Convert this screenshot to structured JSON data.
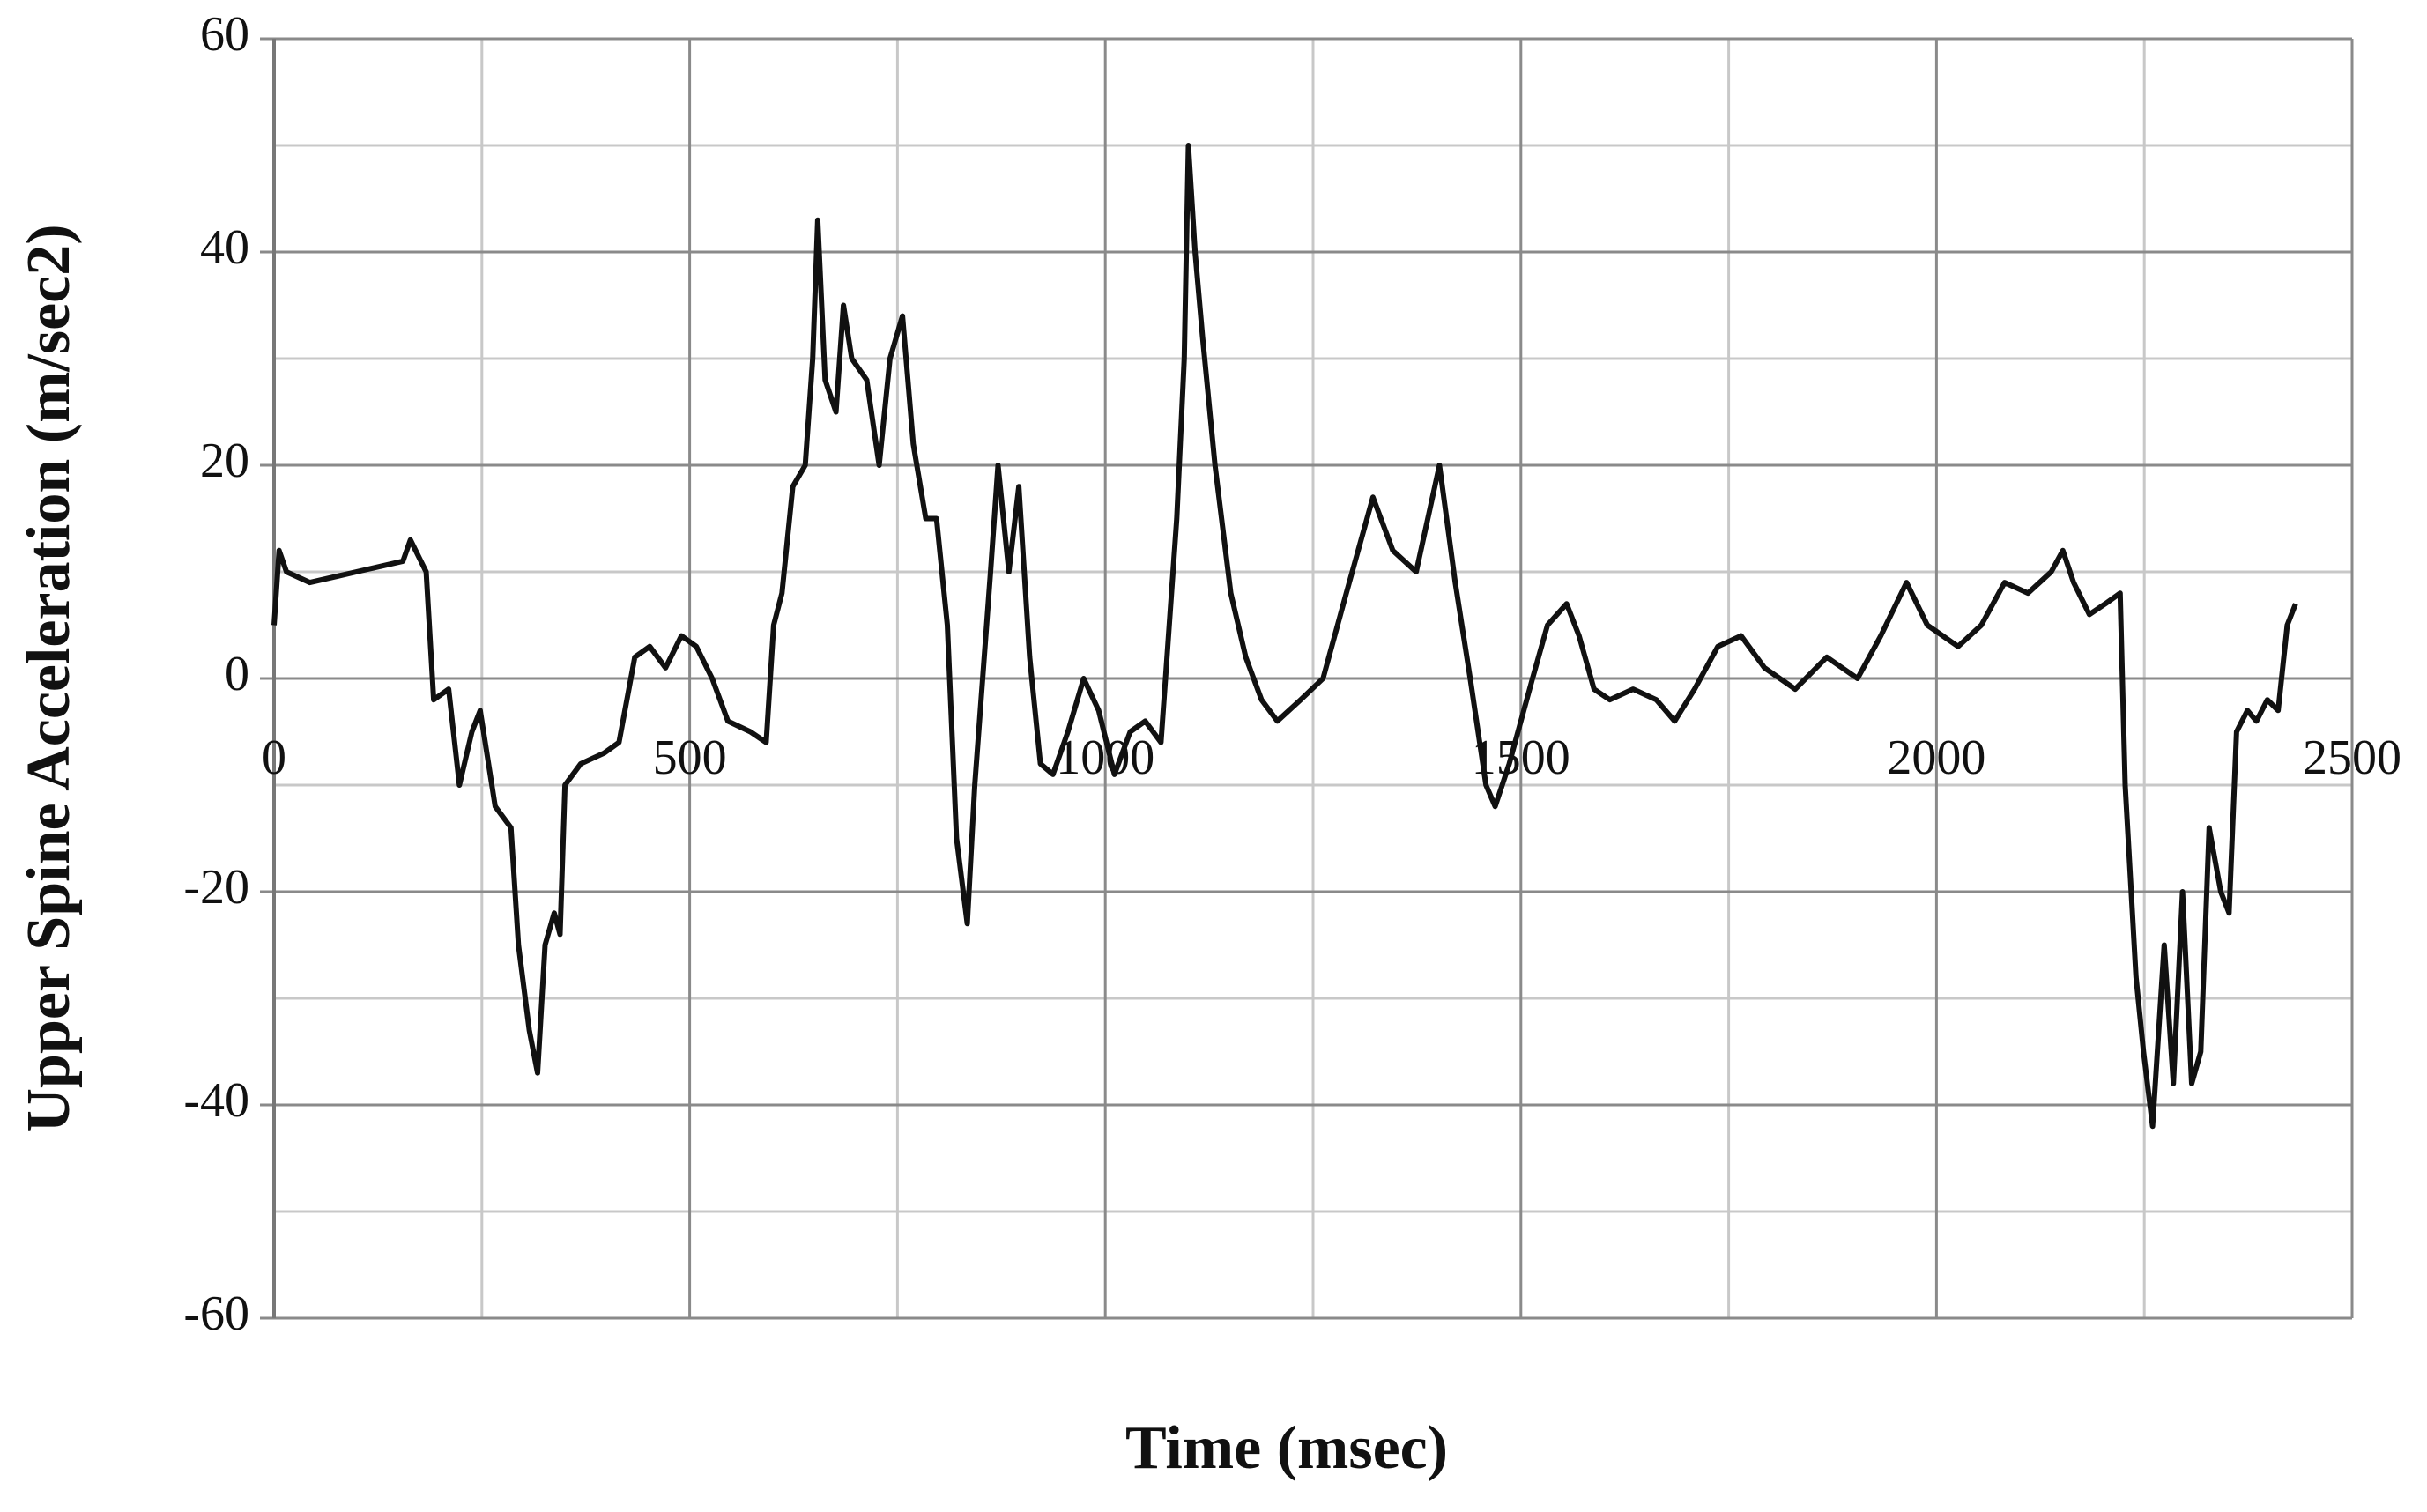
{
  "chart_data": {
    "type": "line",
    "xlabel": "Time (msec)",
    "ylabel": "Upper Spine Acceleration (m/sec2)",
    "color": "#111111",
    "grid": true,
    "xlim": [
      0,
      2500
    ],
    "xticks": [
      0,
      500,
      1000,
      1500,
      2000,
      2500
    ],
    "ylim": [
      -60,
      60
    ],
    "yticks": [
      -60,
      -40,
      -20,
      0,
      20,
      40,
      60
    ],
    "x": [
      0,
      6,
      15,
      43,
      99,
      155,
      164,
      183,
      192,
      210,
      223,
      238,
      248,
      266,
      285,
      294,
      307,
      317,
      326,
      337,
      344,
      350,
      369,
      397,
      415,
      434,
      452,
      471,
      490,
      508,
      527,
      546,
      573,
      592,
      601,
      611,
      624,
      639,
      648,
      654,
      663,
      676,
      685,
      695,
      713,
      728,
      741,
      756,
      769,
      784,
      797,
      810,
      821,
      834,
      843,
      862,
      871,
      884,
      896,
      909,
      922,
      937,
      955,
      974,
      992,
      1011,
      1030,
      1048,
      1067,
      1086,
      1095,
      1100,
      1108,
      1117,
      1132,
      1151,
      1169,
      1188,
      1207,
      1235,
      1262,
      1290,
      1322,
      1346,
      1374,
      1402,
      1421,
      1439,
      1458,
      1469,
      1486,
      1514,
      1532,
      1555,
      1570,
      1588,
      1607,
      1635,
      1663,
      1685,
      1709,
      1737,
      1765,
      1793,
      1830,
      1868,
      1905,
      1933,
      1964,
      1989,
      2026,
      2054,
      2082,
      2110,
      2138,
      2152,
      2165,
      2184,
      2203,
      2221,
      2227,
      2240,
      2249,
      2260,
      2274,
      2285,
      2296,
      2307,
      2318,
      2328,
      2342,
      2352,
      2361,
      2374,
      2385,
      2398,
      2411,
      2422,
      2432
    ],
    "values": [
      5,
      12,
      10,
      9,
      10,
      11,
      13,
      10,
      -2,
      -1,
      -10,
      -5,
      -3,
      -12,
      -14,
      -25,
      -33,
      -37,
      -25,
      -22,
      -24,
      -10,
      -8,
      -7,
      -6,
      2,
      3,
      1,
      4,
      3,
      0,
      -4,
      -5,
      -6,
      5,
      8,
      18,
      20,
      30,
      43,
      28,
      25,
      35,
      30,
      28,
      20,
      30,
      34,
      22,
      15,
      15,
      5,
      -15,
      -23,
      -10,
      10,
      20,
      10,
      18,
      2,
      -8,
      -9,
      -5,
      0,
      -3,
      -9,
      -5,
      -4,
      -6,
      15,
      30,
      50,
      40,
      32,
      20,
      8,
      2,
      -2,
      -4,
      -2,
      0,
      8,
      17,
      12,
      10,
      20,
      9,
      0,
      -10,
      -12,
      -8,
      0,
      5,
      7,
      4,
      -1,
      -2,
      -1,
      -2,
      -4,
      -1,
      3,
      4,
      1,
      -1,
      2,
      0,
      4,
      9,
      5,
      3,
      5,
      9,
      8,
      10,
      12,
      9,
      6,
      7,
      8,
      -10,
      -28,
      -35,
      -42,
      -25,
      -38,
      -20,
      -38,
      -35,
      -14,
      -20,
      -22,
      -5,
      -3,
      -4,
      -2,
      -3,
      5,
      7
    ]
  }
}
